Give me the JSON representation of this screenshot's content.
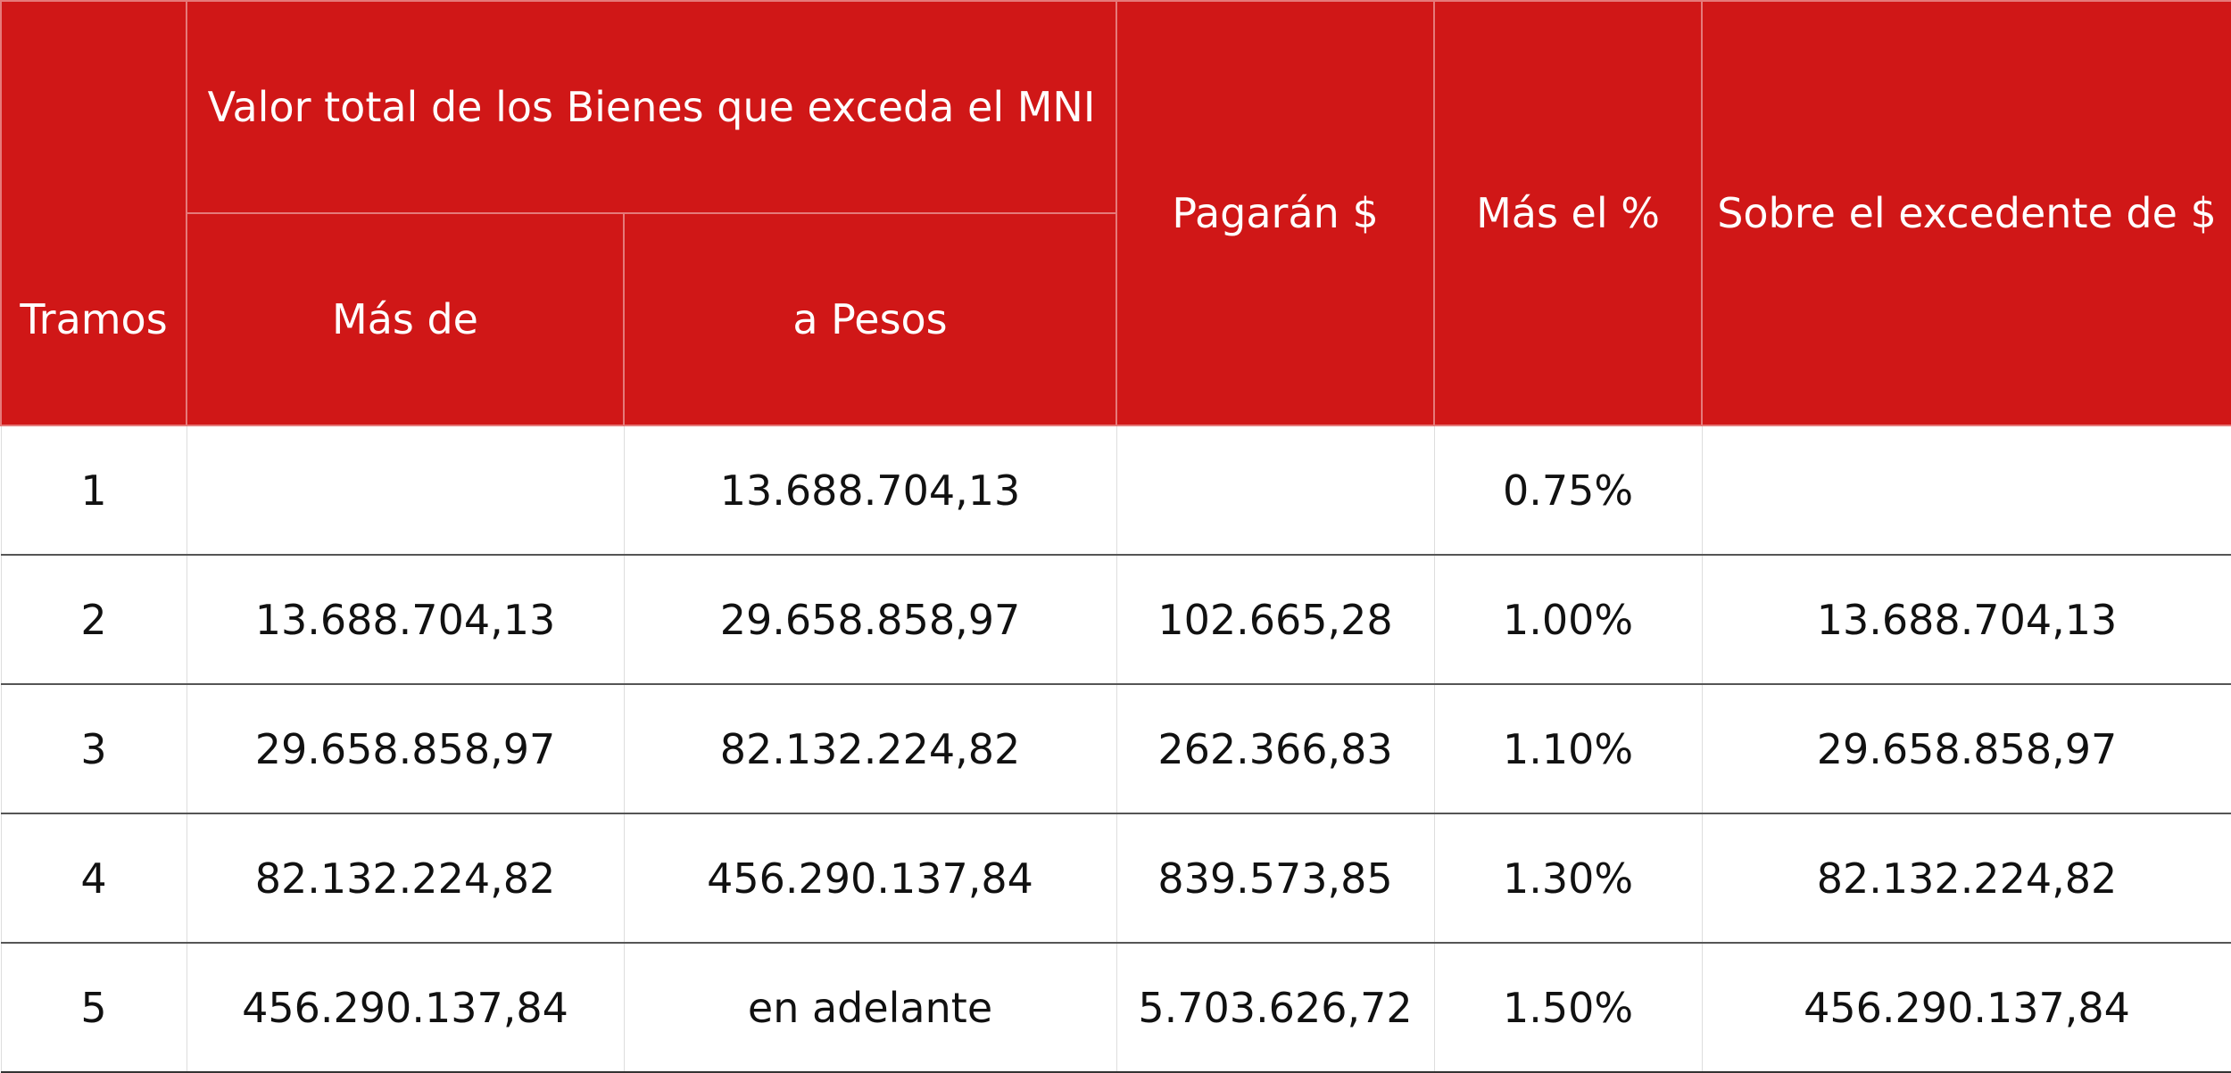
{
  "header": {
    "tramos": "Tramos",
    "valor_total": "Valor total de los Bienes que exceda el MNI",
    "mas_de": "Más de",
    "a_pesos": "a Pesos",
    "pagaran": "Pagarán $",
    "mas_el_porcentaje": "Más el %",
    "sobre_excedente": "Sobre el excedente de $"
  },
  "rows": [
    {
      "tramo": "1",
      "mas_de": "",
      "a_pesos": "13.688.704,13",
      "pagaran": "",
      "porcentaje": "0.75%",
      "excedente": ""
    },
    {
      "tramo": "2",
      "mas_de": "13.688.704,13",
      "a_pesos": "29.658.858,97",
      "pagaran": "102.665,28",
      "porcentaje": "1.00%",
      "excedente": "13.688.704,13"
    },
    {
      "tramo": "3",
      "mas_de": "29.658.858,97",
      "a_pesos": "82.132.224,82",
      "pagaran": "262.366,83",
      "porcentaje": "1.10%",
      "excedente": "29.658.858,97"
    },
    {
      "tramo": "4",
      "mas_de": "82.132.224,82",
      "a_pesos": "456.290.137,84",
      "pagaran": "839.573,85",
      "porcentaje": "1.30%",
      "excedente": "82.132.224,82"
    },
    {
      "tramo": "5",
      "mas_de": "456.290.137,84",
      "a_pesos": "en adelante",
      "pagaran": "5.703.626,72",
      "porcentaje": "1.50%",
      "excedente": "456.290.137,84"
    }
  ],
  "colors": {
    "header_bg": "#d01717",
    "header_text": "#ffffff",
    "body_text": "#111111"
  }
}
